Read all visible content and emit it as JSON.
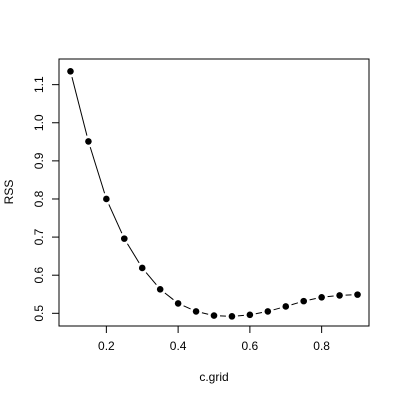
{
  "chart_data": {
    "type": "line",
    "title": "",
    "xlabel": "c.grid",
    "ylabel": "RSS",
    "xlim": [
      0.068,
      0.932
    ],
    "ylim": [
      0.4667,
      1.1673
    ],
    "x_ticks": [
      0.2,
      0.4,
      0.6,
      0.8
    ],
    "x_tick_labels": [
      "0.2",
      "0.4",
      "0.6",
      "0.8"
    ],
    "y_ticks": [
      0.5,
      0.6,
      0.7,
      0.8,
      0.9,
      1.0,
      1.1
    ],
    "y_tick_labels": [
      "0.5",
      "0.6",
      "0.7",
      "0.8",
      "0.9",
      "1.0",
      "1.1"
    ],
    "grid": false,
    "legend": false,
    "line_color": "#000000",
    "point_color": "#000000",
    "series": [
      {
        "x": [
          0.1,
          0.15,
          0.2,
          0.25,
          0.3,
          0.35,
          0.4,
          0.45,
          0.5,
          0.55,
          0.6,
          0.65,
          0.7,
          0.75,
          0.8,
          0.85,
          0.9
        ],
        "y": [
          1.135,
          0.951,
          0.8,
          0.696,
          0.619,
          0.563,
          0.526,
          0.505,
          0.494,
          0.492,
          0.496,
          0.505,
          0.518,
          0.532,
          0.542,
          0.547,
          0.549
        ]
      }
    ]
  }
}
